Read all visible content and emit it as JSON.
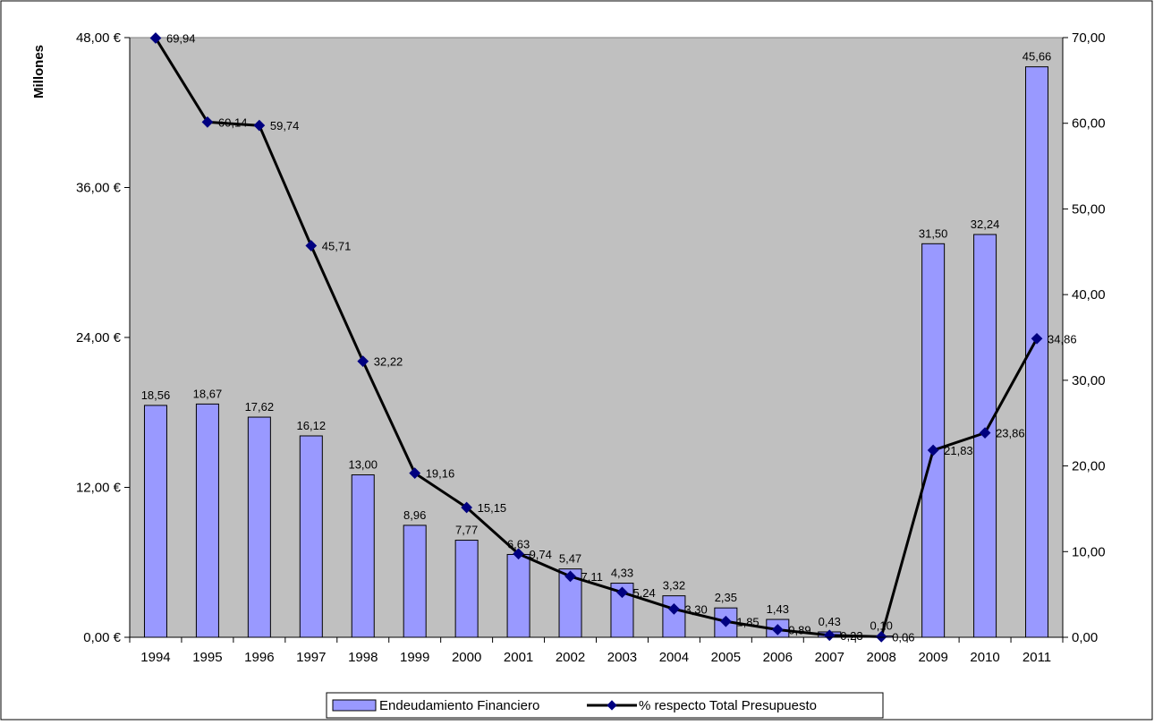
{
  "chart_data": {
    "type": "bar",
    "categories": [
      "1994",
      "1995",
      "1996",
      "1997",
      "1998",
      "1999",
      "2000",
      "2001",
      "2002",
      "2003",
      "2004",
      "2005",
      "2006",
      "2007",
      "2008",
      "2009",
      "2010",
      "2011"
    ],
    "series": [
      {
        "name": "Endeudamiento Financiero",
        "type": "bar",
        "axis": "left",
        "values": [
          18.56,
          18.67,
          17.62,
          16.12,
          13.0,
          8.96,
          7.77,
          6.63,
          5.47,
          4.33,
          3.32,
          2.35,
          1.43,
          0.43,
          0.1,
          31.5,
          32.24,
          45.66
        ],
        "labels": [
          "18,56",
          "18,67",
          "17,62",
          "16,12",
          "13,00",
          "8,96",
          "7,77",
          "6,63",
          "5,47",
          "4,33",
          "3,32",
          "2,35",
          "1,43",
          "0,43",
          "0,10",
          "31,50",
          "32,24",
          "45,66"
        ],
        "color": "#9999ff"
      },
      {
        "name": "% respecto Total Presupuesto",
        "type": "line",
        "axis": "right",
        "values": [
          69.94,
          60.14,
          59.74,
          45.71,
          32.22,
          19.16,
          15.15,
          9.74,
          7.11,
          5.24,
          3.3,
          1.85,
          0.89,
          0.23,
          0.06,
          21.83,
          23.86,
          34.86
        ],
        "labels": [
          "69,94",
          "60,14",
          "59,74",
          "45,71",
          "32,22",
          "19,16",
          "15,15",
          "9,74",
          "7,11",
          "5,24",
          "3,30",
          "1,85",
          "0,89",
          "0,23",
          "0,06",
          "21,83",
          "23,86",
          "34,86"
        ],
        "color": "#000000",
        "marker_color": "#000080"
      }
    ],
    "ylabel": "Millones",
    "ylim": [
      0,
      48
    ],
    "yticks": [
      "0,00 €",
      "12,00 €",
      "24,00 €",
      "36,00 €",
      "48,00 €"
    ],
    "y2lim": [
      0,
      70
    ],
    "y2ticks": [
      "0,00",
      "10,00",
      "20,00",
      "30,00",
      "40,00",
      "50,00",
      "60,00",
      "70,00"
    ],
    "plot_background": "#c0c0c0",
    "grid": false,
    "legend_position": "bottom"
  }
}
